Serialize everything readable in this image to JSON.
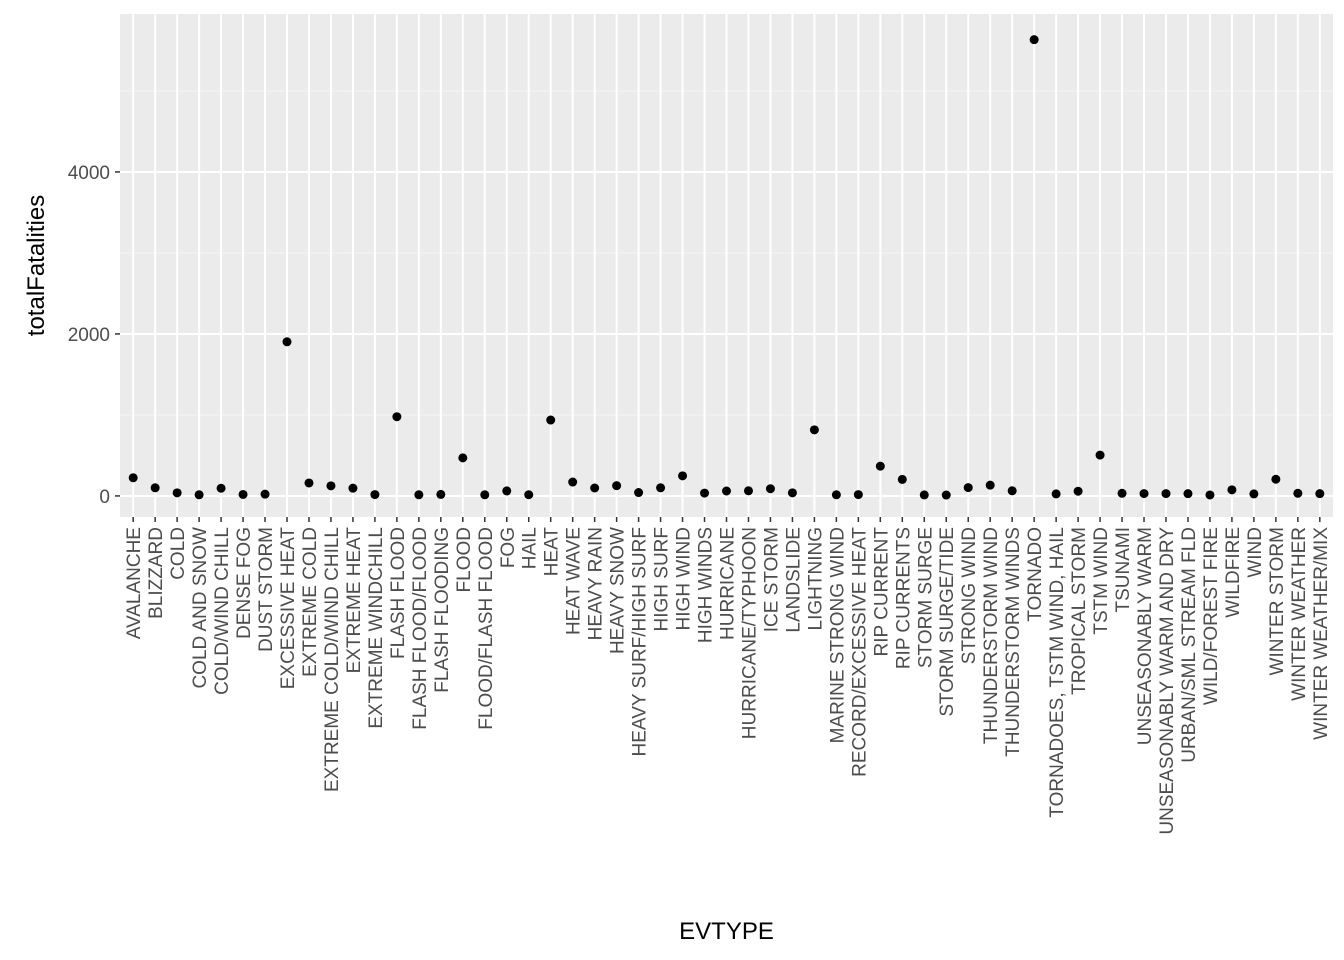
{
  "chart_data": {
    "type": "scatter",
    "title": "",
    "xlabel": "EVTYPE",
    "ylabel": "totalFatalities",
    "ylim": [
      -260,
      5950
    ],
    "yticks": [
      0,
      2000,
      4000
    ],
    "grid": true,
    "background": "#ebebeb",
    "point_color": "#000000",
    "categories": [
      "AVALANCHE",
      "BLIZZARD",
      "COLD",
      "COLD AND SNOW",
      "COLD/WIND CHILL",
      "DENSE FOG",
      "DUST STORM",
      "EXCESSIVE HEAT",
      "EXTREME COLD",
      "EXTREME COLD/WIND CHILL",
      "EXTREME HEAT",
      "EXTREME WINDCHILL",
      "FLASH FLOOD",
      "FLASH FLOOD/FLOOD",
      "FLASH FLOODING",
      "FLOOD",
      "FLOOD/FLASH FLOOD",
      "FOG",
      "HAIL",
      "HEAT",
      "HEAT WAVE",
      "HEAVY RAIN",
      "HEAVY SNOW",
      "HEAVY SURF/HIGH SURF",
      "HIGH SURF",
      "HIGH WIND",
      "HIGH WINDS",
      "HURRICANE",
      "HURRICANE/TYPHOON",
      "ICE STORM",
      "LANDSLIDE",
      "LIGHTNING",
      "MARINE STRONG WIND",
      "RECORD/EXCESSIVE HEAT",
      "RIP CURRENT",
      "RIP CURRENTS",
      "STORM SURGE",
      "STORM SURGE/TIDE",
      "STRONG WIND",
      "THUNDERSTORM WIND",
      "THUNDERSTORM WINDS",
      "TORNADO",
      "TORNADOES, TSTM WIND, HAIL",
      "TROPICAL STORM",
      "TSTM WIND",
      "TSUNAMI",
      "UNSEASONABLY WARM",
      "UNSEASONABLY WARM AND DRY",
      "URBAN/SML STREAM FLD",
      "WILD/FOREST FIRE",
      "WILDFIRE",
      "WIND",
      "WINTER STORM",
      "WINTER WEATHER",
      "WINTER WEATHER/MIX"
    ],
    "values": [
      224,
      101,
      38,
      14,
      95,
      18,
      22,
      1903,
      160,
      125,
      96,
      17,
      978,
      14,
      19,
      470,
      14,
      62,
      15,
      937,
      172,
      98,
      127,
      42,
      101,
      248,
      35,
      61,
      64,
      89,
      38,
      816,
      14,
      17,
      368,
      204,
      13,
      11,
      103,
      133,
      64,
      5633,
      25,
      58,
      504,
      33,
      29,
      29,
      28,
      12,
      75,
      25,
      206,
      33,
      28
    ]
  }
}
